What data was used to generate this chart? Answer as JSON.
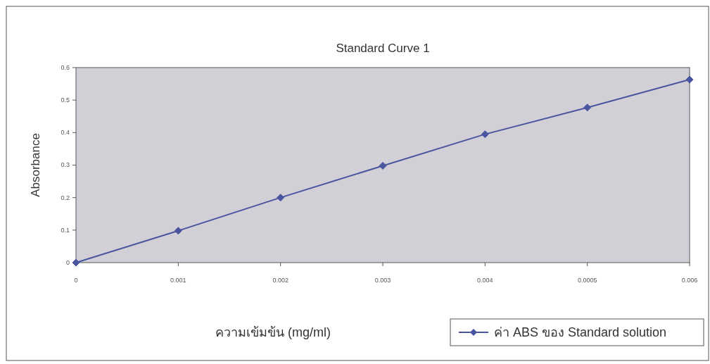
{
  "chart_data": {
    "type": "line",
    "title": "Standard Curve 1",
    "xlabel": "ความเข้มข้น (mg/ml)",
    "ylabel": "Absorbance",
    "categories": [
      "0",
      "0.001",
      "0.002",
      "0.003",
      "0.004",
      "0.0005",
      "0.006"
    ],
    "series": [
      {
        "name": "ค่า ABS ของ Standard solution",
        "color": "#4a55a0",
        "values": [
          0,
          0.098,
          0.2,
          0.298,
          0.395,
          0.477,
          0.563
        ]
      }
    ],
    "ylim": [
      0,
      0.6
    ],
    "yticks": [
      0,
      0.1,
      0.2,
      0.3,
      0.4,
      0.5,
      0.6
    ],
    "marker": "diamond",
    "legend": "bottom right",
    "grid": false
  }
}
